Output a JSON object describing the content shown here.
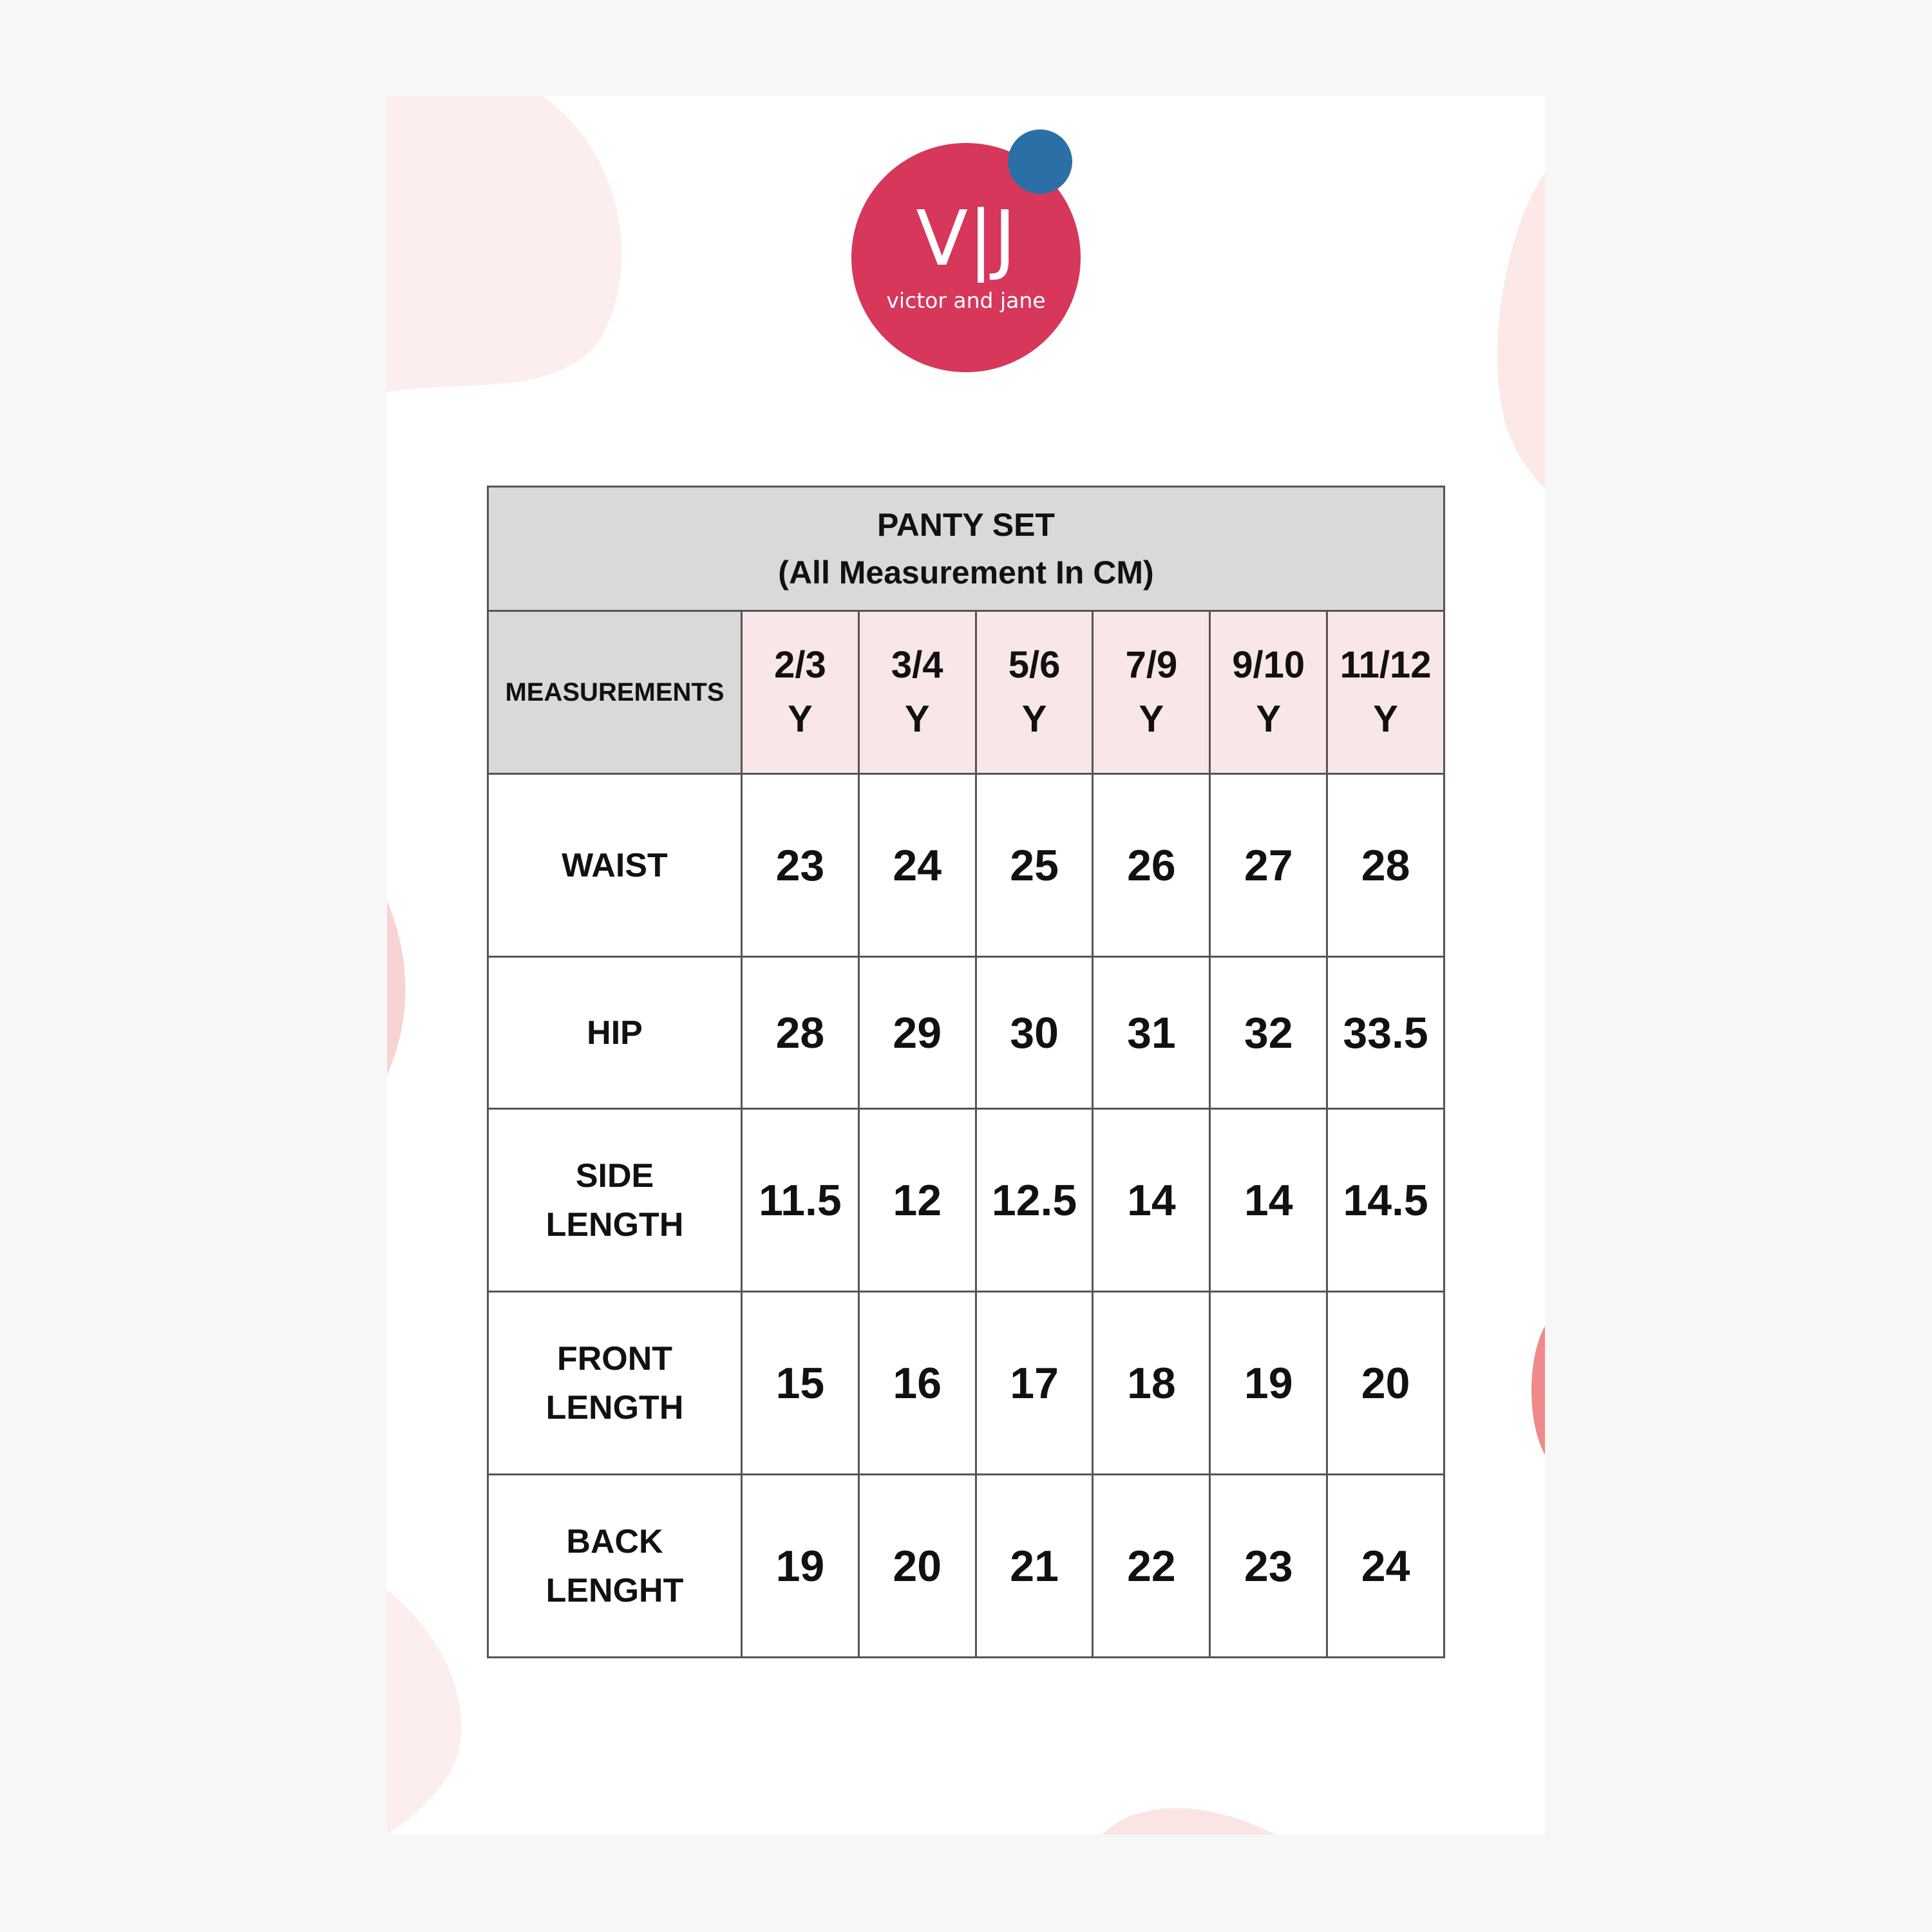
{
  "logo": {
    "mark": "V|J",
    "name": "victor and jane",
    "colors": {
      "circle": "#d6375b",
      "dot": "#2a70a6"
    }
  },
  "table": {
    "title": "PANTY SET",
    "subtitle": "(All Measurement In CM)",
    "corner_label": "MEASUREMENTS",
    "sizes": [
      [
        "2/3",
        "Y"
      ],
      [
        "3/4",
        "Y"
      ],
      [
        "5/6",
        "Y"
      ],
      [
        "7/9",
        "Y"
      ],
      [
        "9/10",
        "Y"
      ],
      [
        "11/12",
        "Y"
      ]
    ],
    "rows": [
      {
        "label": [
          "WAIST"
        ],
        "values": [
          "23",
          "24",
          "25",
          "26",
          "27",
          "28"
        ]
      },
      {
        "label": [
          "HIP"
        ],
        "values": [
          "28",
          "29",
          "30",
          "31",
          "32",
          "33.5"
        ]
      },
      {
        "label": [
          "SIDE",
          "LENGTH"
        ],
        "values": [
          "11.5",
          "12",
          "12.5",
          "14",
          "14",
          "14.5"
        ]
      },
      {
        "label": [
          "FRONT",
          "LENGTH"
        ],
        "values": [
          "15",
          "16",
          "17",
          "18",
          "19",
          "20"
        ]
      },
      {
        "label": [
          "BACK",
          "LENGHT"
        ],
        "values": [
          "19",
          "20",
          "21",
          "22",
          "23",
          "24"
        ]
      }
    ]
  },
  "colors": {
    "header_gray": "#d9d9d9",
    "size_header_pink": "#f9e6e6",
    "blob_pink": "#fbe4e4"
  }
}
